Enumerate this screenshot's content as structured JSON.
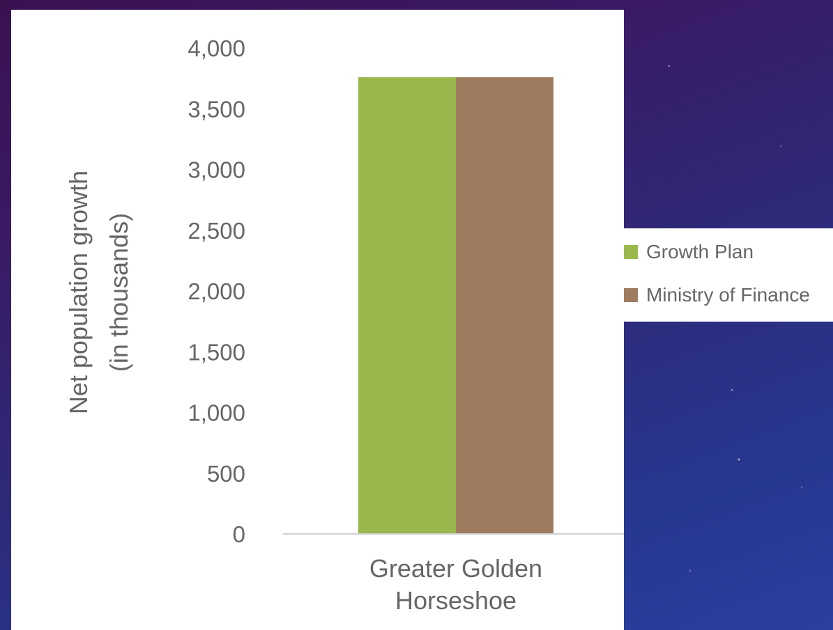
{
  "chart_data": {
    "type": "bar",
    "categories": [
      "Greater Golden\nHorseshoe"
    ],
    "series": [
      {
        "name": "Growth Plan",
        "values": [
          3760
        ],
        "color": "#98b84e"
      },
      {
        "name": "Ministry of Finance",
        "values": [
          3760
        ],
        "color": "#9e7b5e"
      }
    ],
    "ylabel": "Net population growth\n(in thousands)",
    "xlabel": "",
    "ylim": [
      0,
      4000
    ],
    "yticks": [
      "0",
      "500",
      "1,000",
      "1,500",
      "2,000",
      "2,500",
      "3,000",
      "3,500",
      "4,000"
    ],
    "legend_position": "right",
    "grid": false
  }
}
